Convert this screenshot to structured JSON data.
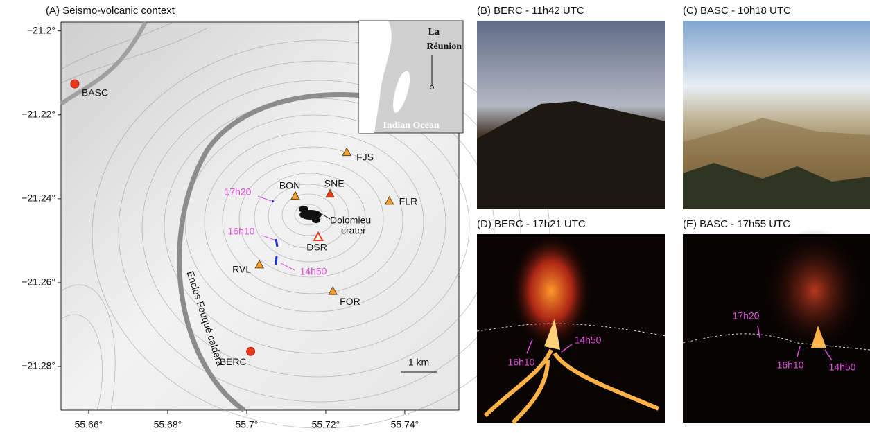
{
  "map": {
    "title": "(A) Seismo-volcanic context",
    "xlim": [
      55.653,
      55.7537
    ],
    "ylim": [
      -21.2904,
      -21.1979
    ],
    "xticks": [
      {
        "value": 55.66,
        "label": "55.66°"
      },
      {
        "value": 55.68,
        "label": "55.68°"
      },
      {
        "value": 55.7,
        "label": "55.7°"
      },
      {
        "value": 55.72,
        "label": "55.72°"
      },
      {
        "value": 55.74,
        "label": "55.74°"
      }
    ],
    "yticks": [
      {
        "value": -21.2,
        "label": "−21.2°"
      },
      {
        "value": -21.22,
        "label": "−21.22°"
      },
      {
        "value": -21.24,
        "label": "−21.24°"
      },
      {
        "value": -21.26,
        "label": "−21.26°"
      },
      {
        "value": -21.28,
        "label": "−21.28°"
      }
    ],
    "stations": [
      {
        "name": "BASC",
        "lon": 55.6565,
        "lat": -21.2126,
        "symbol": "circle",
        "color": "#e8391d",
        "filled": true
      },
      {
        "name": "BERC",
        "lon": 55.701,
        "lat": -21.2764,
        "symbol": "circle",
        "color": "#e8391d",
        "filled": true
      },
      {
        "name": "FJS",
        "lon": 55.7253,
        "lat": -21.2289,
        "symbol": "triangle",
        "color": "#f0a030",
        "filled": true
      },
      {
        "name": "BON",
        "lon": 55.7123,
        "lat": -21.2393,
        "symbol": "triangle",
        "color": "#f0a030",
        "filled": true
      },
      {
        "name": "SNE",
        "lon": 55.7211,
        "lat": -21.2388,
        "symbol": "triangle",
        "color": "#e8391d",
        "filled": true
      },
      {
        "name": "FLR",
        "lon": 55.7361,
        "lat": -21.2405,
        "symbol": "triangle",
        "color": "#f0a030",
        "filled": true
      },
      {
        "name": "DSR",
        "lon": 55.7181,
        "lat": -21.2491,
        "symbol": "triangle",
        "color": "#e8391d",
        "filled": false
      },
      {
        "name": "RVL",
        "lon": 55.7032,
        "lat": -21.2557,
        "symbol": "triangle",
        "color": "#f0a030",
        "filled": true
      },
      {
        "name": "FOR",
        "lon": 55.7218,
        "lat": -21.262,
        "symbol": "triangle",
        "color": "#f0a030",
        "filled": true
      }
    ],
    "times": [
      "17h20",
      "16h10",
      "14h50"
    ],
    "crater_label": [
      "Dolomieu",
      "crater"
    ],
    "caldera_label": "Enclos Fouqué caldera",
    "scale_label": "1 km",
    "inset": {
      "title": [
        "La",
        "Réunion"
      ],
      "ocean": "Indian Ocean"
    }
  },
  "photos": [
    {
      "title": "(B) BERC - 11h42 UTC",
      "labels": []
    },
    {
      "title": "(C) BASC - 10h18 UTC",
      "labels": []
    },
    {
      "title": "(D) BERC - 17h21 UTC",
      "labels": [
        "16h10",
        "14h50"
      ]
    },
    {
      "title": "(E) BASC - 17h55 UTC",
      "labels": [
        "17h20",
        "16h10",
        "14h50"
      ]
    }
  ]
}
